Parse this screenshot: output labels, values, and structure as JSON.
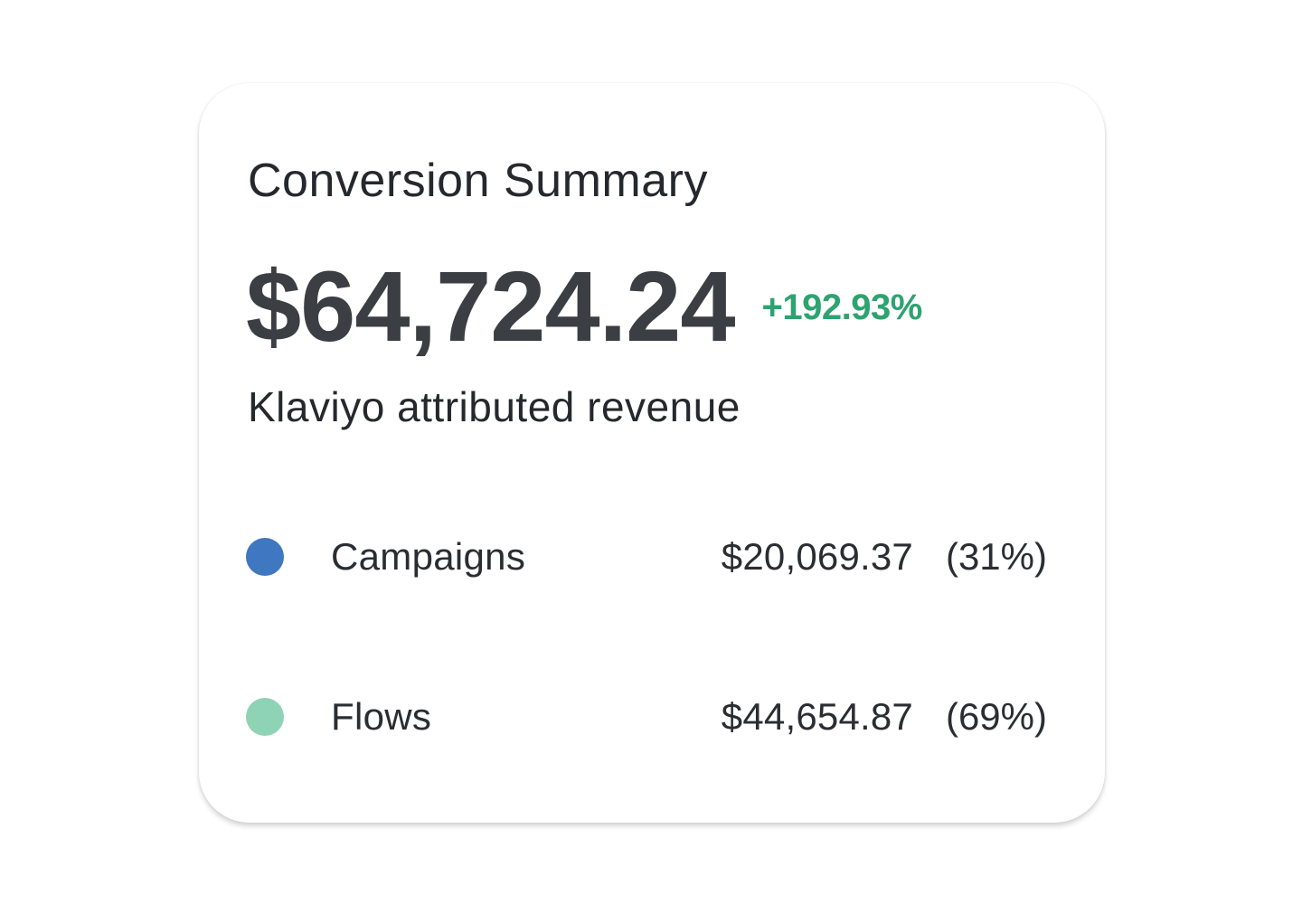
{
  "card": {
    "title": "Conversion Summary",
    "total_revenue": "$64,724.24",
    "change": "+192.93%",
    "change_color": "#2da36f",
    "subtitle": "Klaviyo attributed revenue",
    "breakdown": [
      {
        "label": "Campaigns",
        "amount": "$20,069.37",
        "percent": "(31%)",
        "dot_color": "#3f77c0"
      },
      {
        "label": "Flows",
        "amount": "$44,654.87",
        "percent": "(69%)",
        "dot_color": "#8fd3b6"
      }
    ]
  }
}
